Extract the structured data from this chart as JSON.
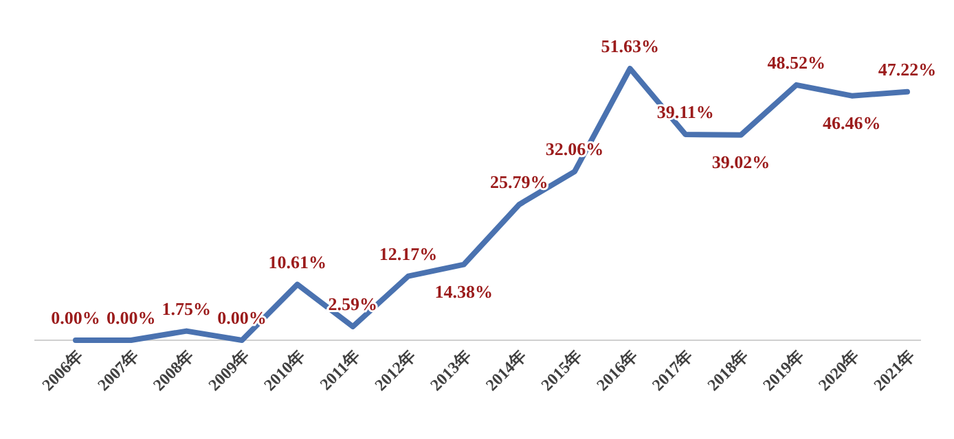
{
  "chart_data": {
    "type": "line",
    "categories": [
      "2006年",
      "2007年",
      "2008年",
      "2009年",
      "2010年",
      "2011年",
      "2012年",
      "2013年",
      "2014年",
      "2015年",
      "2016年",
      "2017年",
      "2018年",
      "2019年",
      "2020年",
      "2021年"
    ],
    "series": [
      {
        "color": "#4a72b0",
        "values": [
          0,
          0,
          1.75,
          0,
          10.61,
          2.59,
          12.17,
          14.38,
          25.79,
          32.06,
          51.63,
          39.11,
          39.02,
          48.52,
          46.46,
          47.22
        ],
        "value_labels": [
          "0.00%",
          "0.00%",
          "1.75%",
          "0.00%",
          "10.61%",
          "2.59%",
          "12.17%",
          "14.38%",
          "25.79%",
          "32.06%",
          "51.63%",
          "39.11%",
          "39.02%",
          "48.52%",
          "46.46%",
          "47.22%"
        ]
      }
    ]
  }
}
